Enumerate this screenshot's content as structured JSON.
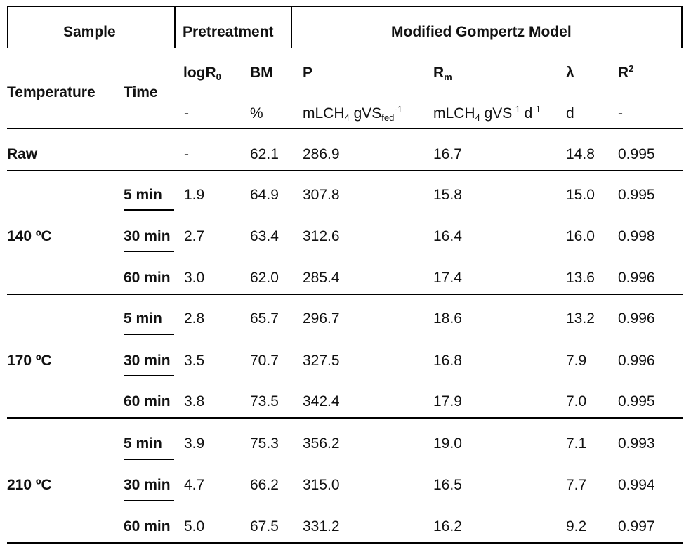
{
  "header": {
    "groups": {
      "sample": "Sample",
      "pretreatment": "Pretreatment",
      "model": "Modified Gompertz Model"
    },
    "columns": {
      "temperature": "Temperature",
      "time": "Time",
      "logR0_base": "logR",
      "logR0_sub": "0",
      "bm": "BM",
      "p": "P",
      "rm_base": "R",
      "rm_sub": "m",
      "lambda": "λ",
      "r2_base": "R",
      "r2_sup": "2"
    },
    "units": {
      "logR0": "-",
      "bm": "%",
      "p_base": "mLCH",
      "p_sub1": "4",
      "p_mid": " gVS",
      "p_sub2": "fed",
      "p_sup": "-1",
      "rm_base": "mLCH",
      "rm_sub": "4",
      "rm_mid": " gVS",
      "rm_sup1": "-1",
      "rm_d": " d",
      "rm_sup2": "-1",
      "lambda": "d",
      "r2": "-"
    }
  },
  "rows": [
    {
      "temperature": "Raw",
      "time": "",
      "logR0": "-",
      "bm": "62.1",
      "p": "286.9",
      "rm": "16.7",
      "lambda": "14.8",
      "r2": "0.995"
    },
    {
      "temperature": "140 ºC",
      "time": "5 min",
      "logR0": "1.9",
      "bm": "64.9",
      "p": "307.8",
      "rm": "15.8",
      "lambda": "15.0",
      "r2": "0.995"
    },
    {
      "temperature": "",
      "time": "30 min",
      "logR0": "2.7",
      "bm": "63.4",
      "p": "312.6",
      "rm": "16.4",
      "lambda": "16.0",
      "r2": "0.998"
    },
    {
      "temperature": "",
      "time": "60 min",
      "logR0": "3.0",
      "bm": "62.0",
      "p": "285.4",
      "rm": "17.4",
      "lambda": "13.6",
      "r2": "0.996"
    },
    {
      "temperature": "170 ºC",
      "time": "5 min",
      "logR0": "2.8",
      "bm": "65.7",
      "p": "296.7",
      "rm": "18.6",
      "lambda": "13.2",
      "r2": "0.996"
    },
    {
      "temperature": "",
      "time": "30 min",
      "logR0": "3.5",
      "bm": "70.7",
      "p": "327.5",
      "rm": "16.8",
      "lambda": "7.9",
      "r2": "0.996"
    },
    {
      "temperature": "",
      "time": "60 min",
      "logR0": "3.8",
      "bm": "73.5",
      "p": "342.4",
      "rm": "17.9",
      "lambda": "7.0",
      "r2": "0.995"
    },
    {
      "temperature": "210 ºC",
      "time": "5 min",
      "logR0": "3.9",
      "bm": "75.3",
      "p": "356.2",
      "rm": "19.0",
      "lambda": "7.1",
      "r2": "0.993"
    },
    {
      "temperature": "",
      "time": "30 min",
      "logR0": "4.7",
      "bm": "66.2",
      "p": "315.0",
      "rm": "16.5",
      "lambda": "7.7",
      "r2": "0.994"
    },
    {
      "temperature": "",
      "time": "60 min",
      "logR0": "5.0",
      "bm": "67.5",
      "p": "331.2",
      "rm": "16.2",
      "lambda": "9.2",
      "r2": "0.997"
    }
  ]
}
